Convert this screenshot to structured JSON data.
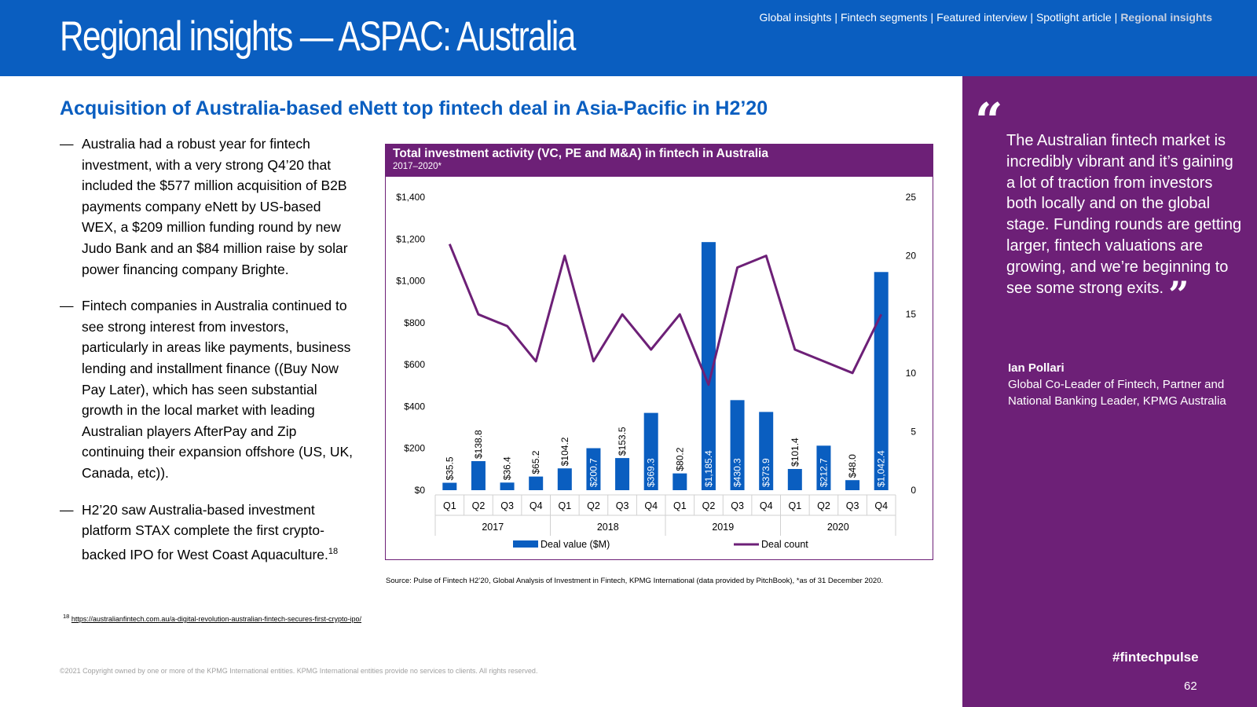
{
  "header": {
    "title": "Regional insights — ASPAC: Australia",
    "nav": [
      {
        "label": "Global insights",
        "active": false
      },
      {
        "label": "Fintech segments",
        "active": false
      },
      {
        "label": "Featured interview",
        "active": false
      },
      {
        "label": "Spotlight article",
        "active": false
      },
      {
        "label": "Regional insights",
        "active": true
      }
    ],
    "nav_separator": "|"
  },
  "headline": "Acquisition of Australia-based eNett top fintech deal in Asia-Pacific in H2’20",
  "bullets": [
    {
      "dash": "—",
      "text": "Australia had a robust year for fintech investment, with a very strong Q4’20 that included the $577 million acquisition of B2B payments company eNett by US-based WEX, a $209 million funding round by new Judo Bank and an $84 million raise by solar power financing company Brighte.",
      "sup": ""
    },
    {
      "dash": "—",
      "text": "Fintech companies in Australia continued to see strong interest from investors, particularly in areas like payments, business lending and installment finance ((Buy Now Pay Later), which has seen substantial growth in the local market with leading Australian players AfterPay and Zip continuing their expansion offshore (US, UK, Canada, etc)).",
      "sup": ""
    },
    {
      "dash": "—",
      "text": "H2’20 saw Australia-based investment platform STAX complete the first crypto-backed IPO for West Coast Aquaculture.",
      "sup": "18"
    }
  ],
  "chart_data": {
    "type": "bar+line",
    "title": "Total investment activity (VC, PE and M&A) in fintech in Australia",
    "subtitle": "2017–2020*",
    "categories": [
      "Q1",
      "Q2",
      "Q3",
      "Q4",
      "Q1",
      "Q2",
      "Q3",
      "Q4",
      "Q1",
      "Q2",
      "Q3",
      "Q4",
      "Q1",
      "Q2",
      "Q3",
      "Q4"
    ],
    "years": [
      "2017",
      "2018",
      "2019",
      "2020"
    ],
    "series": [
      {
        "name": "Deal value ($M)",
        "type": "bar",
        "axis": "left",
        "color": "#0a5ec0",
        "values": [
          35.5,
          138.8,
          36.4,
          65.2,
          104.2,
          200.7,
          153.5,
          369.3,
          80.2,
          1185.4,
          430.3,
          373.9,
          101.4,
          212.7,
          48.0,
          1042.4
        ],
        "labels": [
          "$35.5",
          "$138.8",
          "$36.4",
          "$65.2",
          "$104.2",
          "$200.7",
          "$153.5",
          "$369.3",
          "$80.2",
          "$1,185.4",
          "$430.3",
          "$373.9",
          "$101.4",
          "$212.7",
          "$48.0",
          "$1,042.4"
        ]
      },
      {
        "name": "Deal count",
        "type": "line",
        "axis": "right",
        "color": "#6d2077",
        "values": [
          21,
          15,
          14,
          11,
          20,
          11,
          15,
          12,
          15,
          9,
          19,
          20,
          12,
          11,
          10,
          15
        ]
      }
    ],
    "y_left": {
      "min": 0,
      "max": 1400,
      "ticks": [
        "$0",
        "$200",
        "$400",
        "$600",
        "$800",
        "$1,000",
        "$1,200",
        "$1,400"
      ]
    },
    "y_right": {
      "min": 0,
      "max": 25,
      "ticks": [
        "0",
        "5",
        "10",
        "15",
        "20",
        "25"
      ]
    },
    "legend": "bottom",
    "grid": false
  },
  "source": "Source: Pulse of Fintech H2’20, Global Analysis of Investment in Fintech, KPMG International (data provided by PitchBook), *as of 31 December 2020.",
  "footnote": {
    "num": "18",
    "link": "https://australianfintech.com.au/a-digital-revolution-australian-fintech-secures-first-crypto-ipo/"
  },
  "copyright": "©2021 Copyright owned by one or more of the KPMG International entities. KPMG International entities provide no services to clients. All rights reserved.",
  "sidebar": {
    "quote_open": "“",
    "quote_close": "”",
    "quote": "The Australian fintech market is incredibly vibrant and it’s gaining a lot of traction from investors both locally and on the global stage. Funding rounds are getting larger, fintech valuations are growing, and we’re beginning to see some strong exits.",
    "name": "Ian Pollari",
    "role": "Global Co-Leader of Fintech, Partner and National Banking Leader, KPMG Australia",
    "hashtag": "#fintechpulse",
    "page_number": "62"
  }
}
